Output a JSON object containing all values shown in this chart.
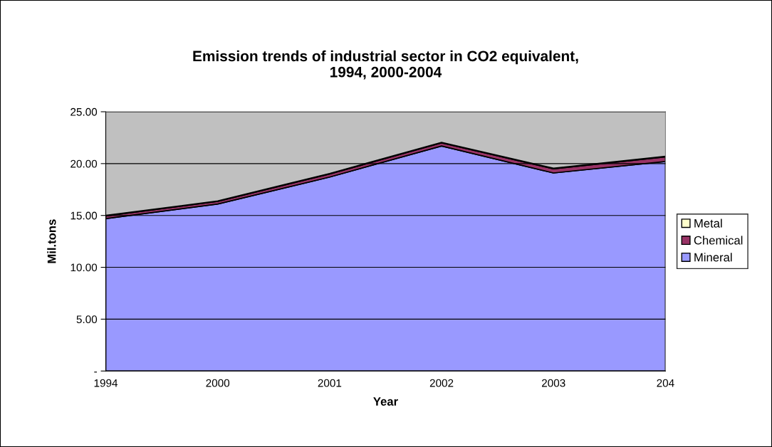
{
  "chart_data": {
    "type": "area",
    "stacked": true,
    "title": "Emission trends of industrial sector in CO2 equivalent,\n1994, 2000-2004",
    "xlabel": "Year",
    "ylabel": "Mil.tons",
    "categories": [
      "1994",
      "2000",
      "2001",
      "2002",
      "2003",
      "204"
    ],
    "series": [
      {
        "name": "Mineral",
        "color": "#9999ff",
        "values": [
          14.7,
          16.1,
          18.7,
          21.7,
          19.1,
          20.2
        ]
      },
      {
        "name": "Chemical",
        "color": "#993366",
        "values": [
          0.25,
          0.25,
          0.3,
          0.3,
          0.4,
          0.45
        ]
      },
      {
        "name": "Metal",
        "color": "#ffffcc",
        "values": [
          0.05,
          0.05,
          0.05,
          0.05,
          0.05,
          0.05
        ]
      }
    ],
    "ylim": [
      0,
      25
    ],
    "yticks": [
      {
        "value": 0,
        "label": "-"
      },
      {
        "value": 5,
        "label": "5.00"
      },
      {
        "value": 10,
        "label": "10.00"
      },
      {
        "value": 15,
        "label": "15.00"
      },
      {
        "value": 20,
        "label": "20.00"
      },
      {
        "value": 25,
        "label": "25.00"
      }
    ],
    "grid": "y",
    "legend": "right"
  }
}
